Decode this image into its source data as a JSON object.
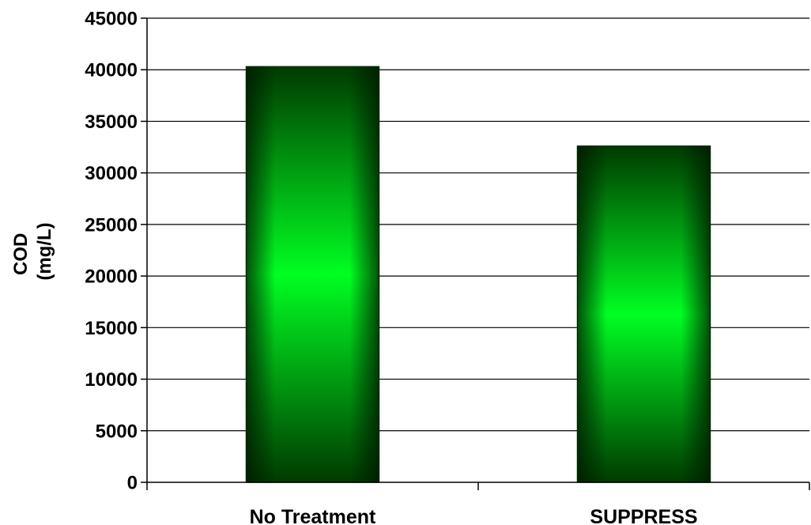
{
  "chart_data": {
    "type": "bar",
    "title": "",
    "xlabel": "",
    "ylabel_lines": [
      "COD",
      "(mg/L)"
    ],
    "categories": [
      "No Treatment",
      "SUPPRESS"
    ],
    "values": [
      40300,
      32600
    ],
    "ylim": [
      0,
      45000
    ],
    "ytick_step": 5000,
    "grid": true,
    "legend": "none",
    "colors": {
      "bar_edge": "#003300",
      "bar_center": "#00ff22",
      "bar_outer": "#003a00",
      "grid": "#000000",
      "axis": "#000000"
    }
  }
}
